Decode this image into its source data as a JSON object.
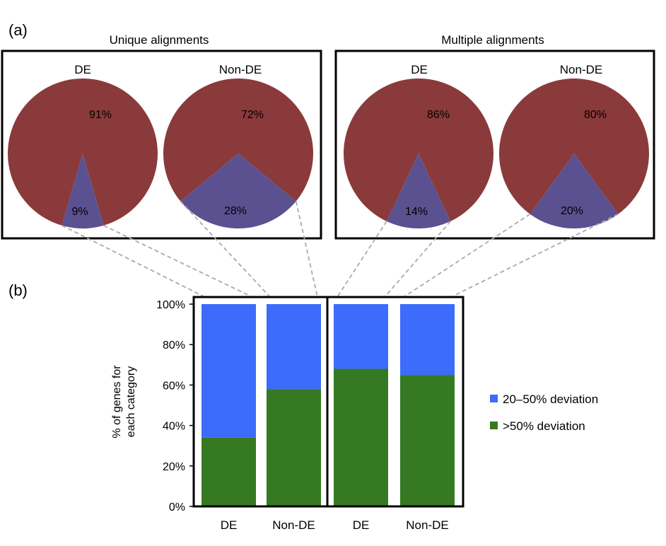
{
  "panels": {
    "a": "(a)",
    "b": "(b)"
  },
  "colors": {
    "pie_major": "#8a3a3a",
    "pie_minor": "#5b5190",
    "bar_blue": "#3d6bfa",
    "bar_green": "#357a23",
    "connector": "#aaaaaa"
  },
  "chart_data": [
    {
      "type": "pie",
      "group": "Unique alignments",
      "title": "DE",
      "slices": [
        {
          "label": "91%",
          "value": 91
        },
        {
          "label": "9%",
          "value": 9
        }
      ]
    },
    {
      "type": "pie",
      "group": "Unique alignments",
      "title": "Non-DE",
      "slices": [
        {
          "label": "72%",
          "value": 72
        },
        {
          "label": "28%",
          "value": 28
        }
      ]
    },
    {
      "type": "pie",
      "group": "Multiple alignments",
      "title": "DE",
      "slices": [
        {
          "label": "86%",
          "value": 86
        },
        {
          "label": "14%",
          "value": 14
        }
      ]
    },
    {
      "type": "pie",
      "group": "Multiple alignments",
      "title": "Non-DE",
      "slices": [
        {
          "label": "80%",
          "value": 80
        },
        {
          "label": "20%",
          "value": 20
        }
      ]
    },
    {
      "type": "bar",
      "stacked": true,
      "categories": [
        "DE",
        "Non-DE",
        "DE",
        "Non-DE"
      ],
      "series": [
        {
          "name": ">50% deviation",
          "values": [
            34,
            58,
            68,
            65
          ]
        },
        {
          "name": "20–50% deviation",
          "values": [
            66,
            42,
            32,
            35
          ]
        }
      ],
      "ylabel": "% of genes for each category",
      "ylim": [
        0,
        100
      ],
      "yticks": [
        "0%",
        "20%",
        "40%",
        "60%",
        "80%",
        "100%"
      ],
      "legend": [
        "20–50% deviation",
        ">50% deviation"
      ],
      "legend_position": "right"
    }
  ]
}
